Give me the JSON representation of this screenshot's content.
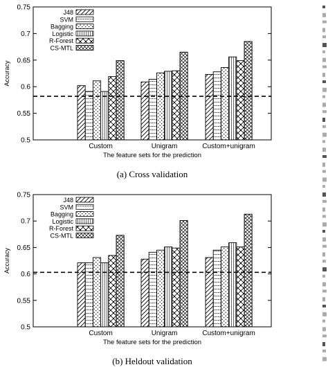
{
  "chart_data": [
    {
      "type": "bar",
      "caption": "(a)  Cross validation",
      "xlabel": "The feature sets for the prediction",
      "ylabel": "Accuracy",
      "ylim": [
        0.5,
        0.75
      ],
      "yticks": [
        "0.5",
        "0.55",
        "0.6",
        "0.65",
        "0.7",
        "0.75"
      ],
      "categories": [
        "Custom",
        "Unigram",
        "Custom+unigram"
      ],
      "baseline": 0.582,
      "legend_position": "top-left",
      "grid": false,
      "series": [
        {
          "name": "J48",
          "values": [
            0.602,
            0.609,
            0.623
          ]
        },
        {
          "name": "SVM",
          "values": [
            0.591,
            0.614,
            0.628
          ]
        },
        {
          "name": "Bagging",
          "values": [
            0.611,
            0.626,
            0.636
          ]
        },
        {
          "name": "Logistic",
          "values": [
            0.591,
            0.629,
            0.656
          ]
        },
        {
          "name": "R-Forest",
          "values": [
            0.619,
            0.63,
            0.649
          ]
        },
        {
          "name": "CS-MTL",
          "values": [
            0.649,
            0.665,
            0.685
          ]
        }
      ]
    },
    {
      "type": "bar",
      "caption": "(b)  Heldout validation",
      "xlabel": "The feature sets for the prediction",
      "ylabel": "Accuracy",
      "ylim": [
        0.5,
        0.75
      ],
      "yticks": [
        "0.5",
        "0.55",
        "0.6",
        "0.65",
        "0.7",
        "0.75"
      ],
      "categories": [
        "Custom",
        "Unigram",
        "Custom+unigram"
      ],
      "baseline": 0.603,
      "legend_position": "top-left",
      "grid": false,
      "series": [
        {
          "name": "J48",
          "values": [
            0.621,
            0.628,
            0.631
          ]
        },
        {
          "name": "SVM",
          "values": [
            0.621,
            0.641,
            0.645
          ]
        },
        {
          "name": "Bagging",
          "values": [
            0.631,
            0.645,
            0.651
          ]
        },
        {
          "name": "Logistic",
          "values": [
            0.621,
            0.651,
            0.659
          ]
        },
        {
          "name": "R-Forest",
          "values": [
            0.635,
            0.649,
            0.651
          ]
        },
        {
          "name": "CS-MTL",
          "values": [
            0.673,
            0.701,
            0.713
          ]
        }
      ]
    }
  ]
}
